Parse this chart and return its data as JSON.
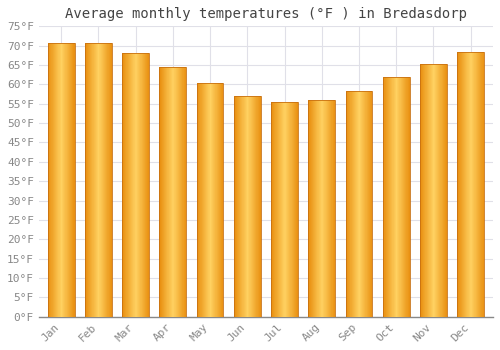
{
  "title": "Average monthly temperatures (°F ) in Bredasdorp",
  "months": [
    "Jan",
    "Feb",
    "Mar",
    "Apr",
    "May",
    "Jun",
    "Jul",
    "Aug",
    "Sep",
    "Oct",
    "Nov",
    "Dec"
  ],
  "values": [
    70.7,
    70.7,
    68.0,
    64.4,
    60.3,
    57.0,
    55.4,
    55.9,
    58.3,
    61.9,
    65.3,
    68.4
  ],
  "bar_color_edge": "#E8900A",
  "bar_color_center": "#FFD060",
  "ylim": [
    0,
    75
  ],
  "ytick_step": 5,
  "background_color": "#ffffff",
  "grid_color": "#e0e0e8",
  "title_fontsize": 10,
  "tick_fontsize": 8,
  "font_family": "monospace",
  "bar_edge_color": "#b8860a",
  "bar_edge_width": 0.5
}
